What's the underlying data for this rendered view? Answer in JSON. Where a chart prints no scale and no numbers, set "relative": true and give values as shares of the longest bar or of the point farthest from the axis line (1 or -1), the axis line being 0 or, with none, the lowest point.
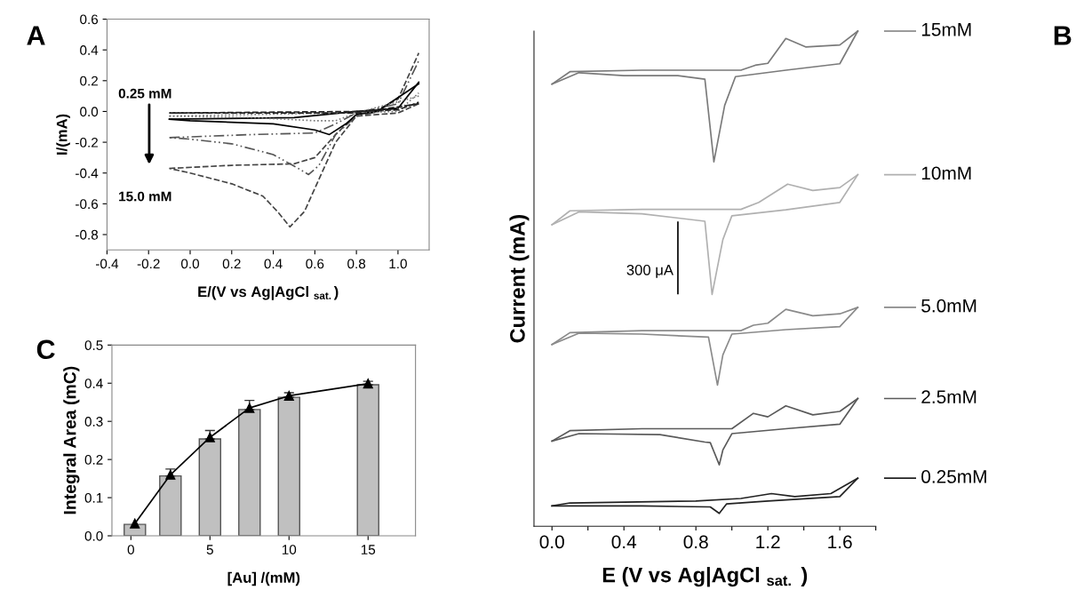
{
  "chart_data": [
    {
      "type": "line",
      "xlabel": "E/(V vs Ag|AgCl $_{sat.}$)",
      "ylabel": "I/(mA)",
      "xlim": [
        -0.4,
        1.15
      ],
      "ylim": [
        -0.9,
        0.6
      ],
      "xticks": [
        -0.4,
        -0.2,
        {
          "value": 0,
          "label": "0.0"
        },
        0.2,
        0.4,
        0.6,
        0.8,
        {
          "value": 1,
          "label": "1.0"
        }
      ],
      "yticks": [
        -0.8,
        -0.6,
        -0.4,
        -0.2,
        {
          "value": 0,
          "label": "0.0"
        },
        0.2,
        0.4,
        0.6
      ],
      "marker": "none",
      "annotations": [
        "A",
        "0.25 mM",
        "15.0 mM"
      ],
      "series": [
        {
          "color": "#444444",
          "line_style": "dashed",
          "x": [
            1.1,
            1.0,
            0.9,
            0.8,
            0.7,
            0.6,
            0.55,
            0.48,
            0.42,
            0.35,
            0.2,
            0.0,
            -0.1
          ],
          "values": [
            0.05,
            -0.01,
            -0.02,
            -0.03,
            -0.2,
            -0.5,
            -0.65,
            -0.75,
            -0.65,
            -0.55,
            -0.47,
            -0.4,
            -0.37
          ]
        },
        {
          "color": "#444444",
          "line_style": "dashed",
          "x": [
            -0.1,
            0.2,
            0.5,
            0.6,
            0.7,
            0.8,
            0.9,
            1.0,
            1.1
          ],
          "values": [
            -0.37,
            -0.35,
            -0.34,
            -0.3,
            -0.15,
            -0.02,
            0.01,
            0.08,
            0.38
          ]
        },
        {
          "color": "#555555",
          "line_style": "dashdot",
          "x": [
            1.1,
            0.8,
            0.7,
            0.62,
            0.57,
            0.52,
            0.4,
            0.2,
            0.0,
            -0.1
          ],
          "values": [
            0.05,
            -0.03,
            -0.15,
            -0.35,
            -0.41,
            -0.37,
            -0.28,
            -0.21,
            -0.18,
            -0.17
          ]
        },
        {
          "color": "#555555",
          "line_style": "dashdot",
          "x": [
            -0.1,
            0.3,
            0.6,
            0.7,
            0.8,
            1.0,
            1.1
          ],
          "values": [
            -0.17,
            -0.15,
            -0.14,
            -0.08,
            -0.01,
            0.05,
            0.33
          ]
        },
        {
          "color": "#000000",
          "line_style": "solid",
          "x": [
            1.1,
            0.9,
            0.8,
            0.75,
            0.67,
            0.6,
            0.4,
            0.0,
            -0.1
          ],
          "values": [
            0.18,
            0.0,
            -0.02,
            -0.08,
            -0.15,
            -0.12,
            -0.08,
            -0.06,
            -0.05
          ]
        },
        {
          "color": "#000000",
          "line_style": "solid",
          "x": [
            -0.1,
            0.5,
            0.8,
            1.0,
            1.1
          ],
          "values": [
            -0.05,
            -0.04,
            0.0,
            0.02,
            0.19
          ]
        },
        {
          "color": "#777777",
          "line_style": "dotted",
          "x": [
            1.1,
            0.8,
            0.7,
            0.6,
            0.3,
            -0.1
          ],
          "values": [
            0.1,
            -0.01,
            -0.06,
            -0.06,
            -0.04,
            -0.03
          ]
        },
        {
          "color": "#777777",
          "line_style": "dotted",
          "x": [
            -0.1,
            0.7,
            1.0,
            1.1
          ],
          "values": [
            -0.03,
            -0.01,
            0.0,
            0.12
          ]
        },
        {
          "color": "#222222",
          "line_style": "dashed",
          "x": [
            1.1,
            0.8,
            0.4,
            -0.1
          ],
          "values": [
            0.05,
            -0.01,
            -0.01,
            -0.01
          ]
        },
        {
          "color": "#222222",
          "line_style": "dashed",
          "x": [
            -0.1,
            0.8,
            1.0,
            1.1
          ],
          "values": [
            -0.01,
            0.0,
            0.01,
            0.06
          ]
        }
      ]
    },
    {
      "type": "line",
      "relative": true,
      "xlabel": "E (V vs Ag|AgCl $_{sat.}$ )",
      "ylabel": "Current (mA)",
      "xlim": [
        -0.1,
        1.8
      ],
      "tick_labels": "x",
      "legend": "right",
      "xticks": [
        {
          "value": 0,
          "label": "0.0"
        },
        {
          "value": 0.2,
          "label": null
        },
        0.4,
        {
          "value": 0.6,
          "label": null
        },
        0.8,
        {
          "value": 1.0,
          "label": null
        },
        1.2,
        {
          "value": 1.4,
          "label": null
        },
        1.6,
        {
          "value": 1.8,
          "label": null
        }
      ],
      "marker": "none",
      "annotations": [
        "B",
        "300 μA"
      ],
      "series": [
        {
          "name": "15mM",
          "color": "#7a7a7a",
          "x": [
            0,
            0.1,
            0.5,
            1.05,
            1.13,
            1.2,
            1.3,
            1.41,
            1.6,
            1.7
          ],
          "values": [
            0.893,
            0.918,
            0.921,
            0.921,
            0.931,
            0.935,
            0.985,
            0.968,
            0.972,
            1.0
          ]
        },
        {
          "color": "#7a7a7a",
          "x": [
            1.7,
            1.6,
            1.3,
            1.02,
            0.96,
            0.9,
            0.85,
            0.7,
            0.4,
            0.15,
            0
          ],
          "values": [
            1.0,
            0.934,
            0.921,
            0.908,
            0.85,
            0.736,
            0.903,
            0.91,
            0.91,
            0.916,
            0.893
          ]
        },
        {
          "name": "10mM",
          "color": "#b0b0b0",
          "x": [
            0,
            0.1,
            0.5,
            1.05,
            1.15,
            1.31,
            1.45,
            1.6,
            1.7
          ],
          "values": [
            0.609,
            0.637,
            0.64,
            0.64,
            0.654,
            0.691,
            0.678,
            0.684,
            0.71
          ]
        },
        {
          "color": "#b0b0b0",
          "x": [
            1.7,
            1.6,
            1.3,
            1.0,
            0.95,
            0.89,
            0.85,
            0.5,
            0.15,
            0
          ],
          "values": [
            0.71,
            0.654,
            0.639,
            0.627,
            0.579,
            0.468,
            0.616,
            0.631,
            0.635,
            0.609
          ]
        },
        {
          "name": "5.0mM",
          "color": "#8a8a8a",
          "x": [
            0,
            0.1,
            0.5,
            1.05,
            1.12,
            1.2,
            1.3,
            1.45,
            1.6,
            1.7
          ],
          "values": [
            0.367,
            0.391,
            0.395,
            0.395,
            0.406,
            0.41,
            0.438,
            0.425,
            0.429,
            0.442
          ]
        },
        {
          "color": "#8a8a8a",
          "x": [
            1.7,
            1.6,
            1.3,
            1.0,
            0.95,
            0.92,
            0.87,
            0.5,
            0.15,
            0
          ],
          "values": [
            0.442,
            0.403,
            0.397,
            0.388,
            0.346,
            0.285,
            0.382,
            0.388,
            0.39,
            0.367
          ]
        },
        {
          "name": "2.5mM",
          "color": "#5a5a5a",
          "x": [
            0,
            0.1,
            0.5,
            1.0,
            1.12,
            1.2,
            1.3,
            1.45,
            1.6,
            1.7
          ],
          "values": [
            0.172,
            0.193,
            0.197,
            0.197,
            0.228,
            0.221,
            0.243,
            0.225,
            0.232,
            0.258
          ]
        },
        {
          "color": "#5a5a5a",
          "x": [
            1.7,
            1.6,
            1.3,
            1.0,
            0.95,
            0.93,
            0.88,
            0.85,
            0.6,
            0.15,
            0
          ],
          "values": [
            0.258,
            0.206,
            0.197,
            0.187,
            0.154,
            0.124,
            0.169,
            0.17,
            0.185,
            0.187,
            0.172
          ]
        },
        {
          "name": "0.25mM",
          "color": "#222222",
          "x": [
            0,
            0.1,
            0.8,
            1.05,
            1.22,
            1.35,
            1.55,
            1.7
          ],
          "values": [
            0.041,
            0.047,
            0.051,
            0.056,
            0.066,
            0.06,
            0.066,
            0.097
          ]
        },
        {
          "color": "#000000",
          "x": [
            0.7,
            0.7
          ],
          "values": [
            0.47,
            0.614
          ]
        },
        {
          "color": "#222222",
          "x": [
            1.7,
            1.6,
            1.2,
            0.97,
            0.93,
            0.88,
            0.5,
            0
          ],
          "values": [
            0.097,
            0.06,
            0.051,
            0.045,
            0.026,
            0.039,
            0.041,
            0.041
          ]
        }
      ]
    },
    {
      "type": "bar",
      "xlabel": "[Au] /(mM)",
      "ylabel": "Integral Area (mC)",
      "xlim": [
        -1.2,
        18
      ],
      "ylim": [
        0,
        0.5
      ],
      "xticks": [
        0,
        5,
        10,
        15
      ],
      "yticks": [
        {
          "value": 0,
          "label": "0.0"
        },
        0.1,
        0.2,
        0.3,
        0.4,
        0.5
      ],
      "annotations": [
        "C"
      ],
      "series": [
        {
          "type": "bar",
          "color": "#c0c0c0",
          "x": [
            0.25,
            2.5,
            5,
            7.5,
            10,
            15
          ],
          "values": [
            0.03,
            0.157,
            0.254,
            0.331,
            0.363,
            0.396
          ],
          "errors": [
            null,
            [
              0.157,
              0.175
            ],
            [
              0.254,
              0.276
            ],
            [
              0.331,
              0.355
            ],
            [
              0.363,
              0.375
            ],
            [
              0.396,
              0.405
            ]
          ]
        },
        {
          "type": "line",
          "color": "#000000",
          "marker": "triangle",
          "x": [
            0.25,
            2.5,
            5,
            7.5,
            10,
            15
          ],
          "values": [
            0.032,
            0.16,
            0.258,
            0.335,
            0.367,
            0.399
          ]
        }
      ]
    }
  ]
}
